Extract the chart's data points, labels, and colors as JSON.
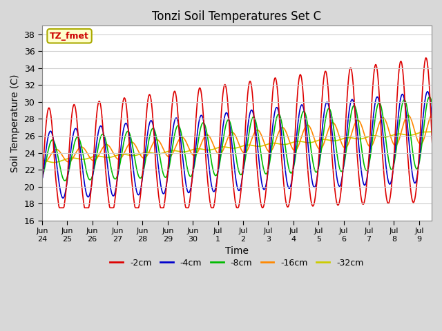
{
  "title": "Tonzi Soil Temperatures Set C",
  "xlabel": "Time",
  "ylabel": "Soil Temperature (C)",
  "ylim": [
    16,
    39
  ],
  "yticks": [
    16,
    18,
    20,
    22,
    24,
    26,
    28,
    30,
    32,
    34,
    36,
    38
  ],
  "x_tick_labels": [
    "Jun\n24",
    "Jun\n25",
    "Jun\n26",
    "Jun\n27",
    "Jun\n28",
    "Jun\n29",
    "Jun\n30",
    "Jul\n1",
    "Jul\n2",
    "Jul\n3",
    "Jul\n4",
    "Jul\n5",
    "Jul\n6",
    "Jul\n7",
    "Jul\n8",
    "Jul\n9"
  ],
  "annotation_text": "TZ_fmet",
  "annotation_color": "#cc0000",
  "annotation_bg": "#ffffcc",
  "annotation_border": "#aaaa00",
  "series_colors": [
    "#dd0000",
    "#0000cc",
    "#00bb00",
    "#ff8800",
    "#cccc00"
  ],
  "series_labels": [
    "-2cm",
    "-4cm",
    "-8cm",
    "-16cm",
    "-32cm"
  ],
  "fig_facecolor": "#d8d8d8",
  "plot_bg": "#ffffff",
  "linewidth": 1.2
}
